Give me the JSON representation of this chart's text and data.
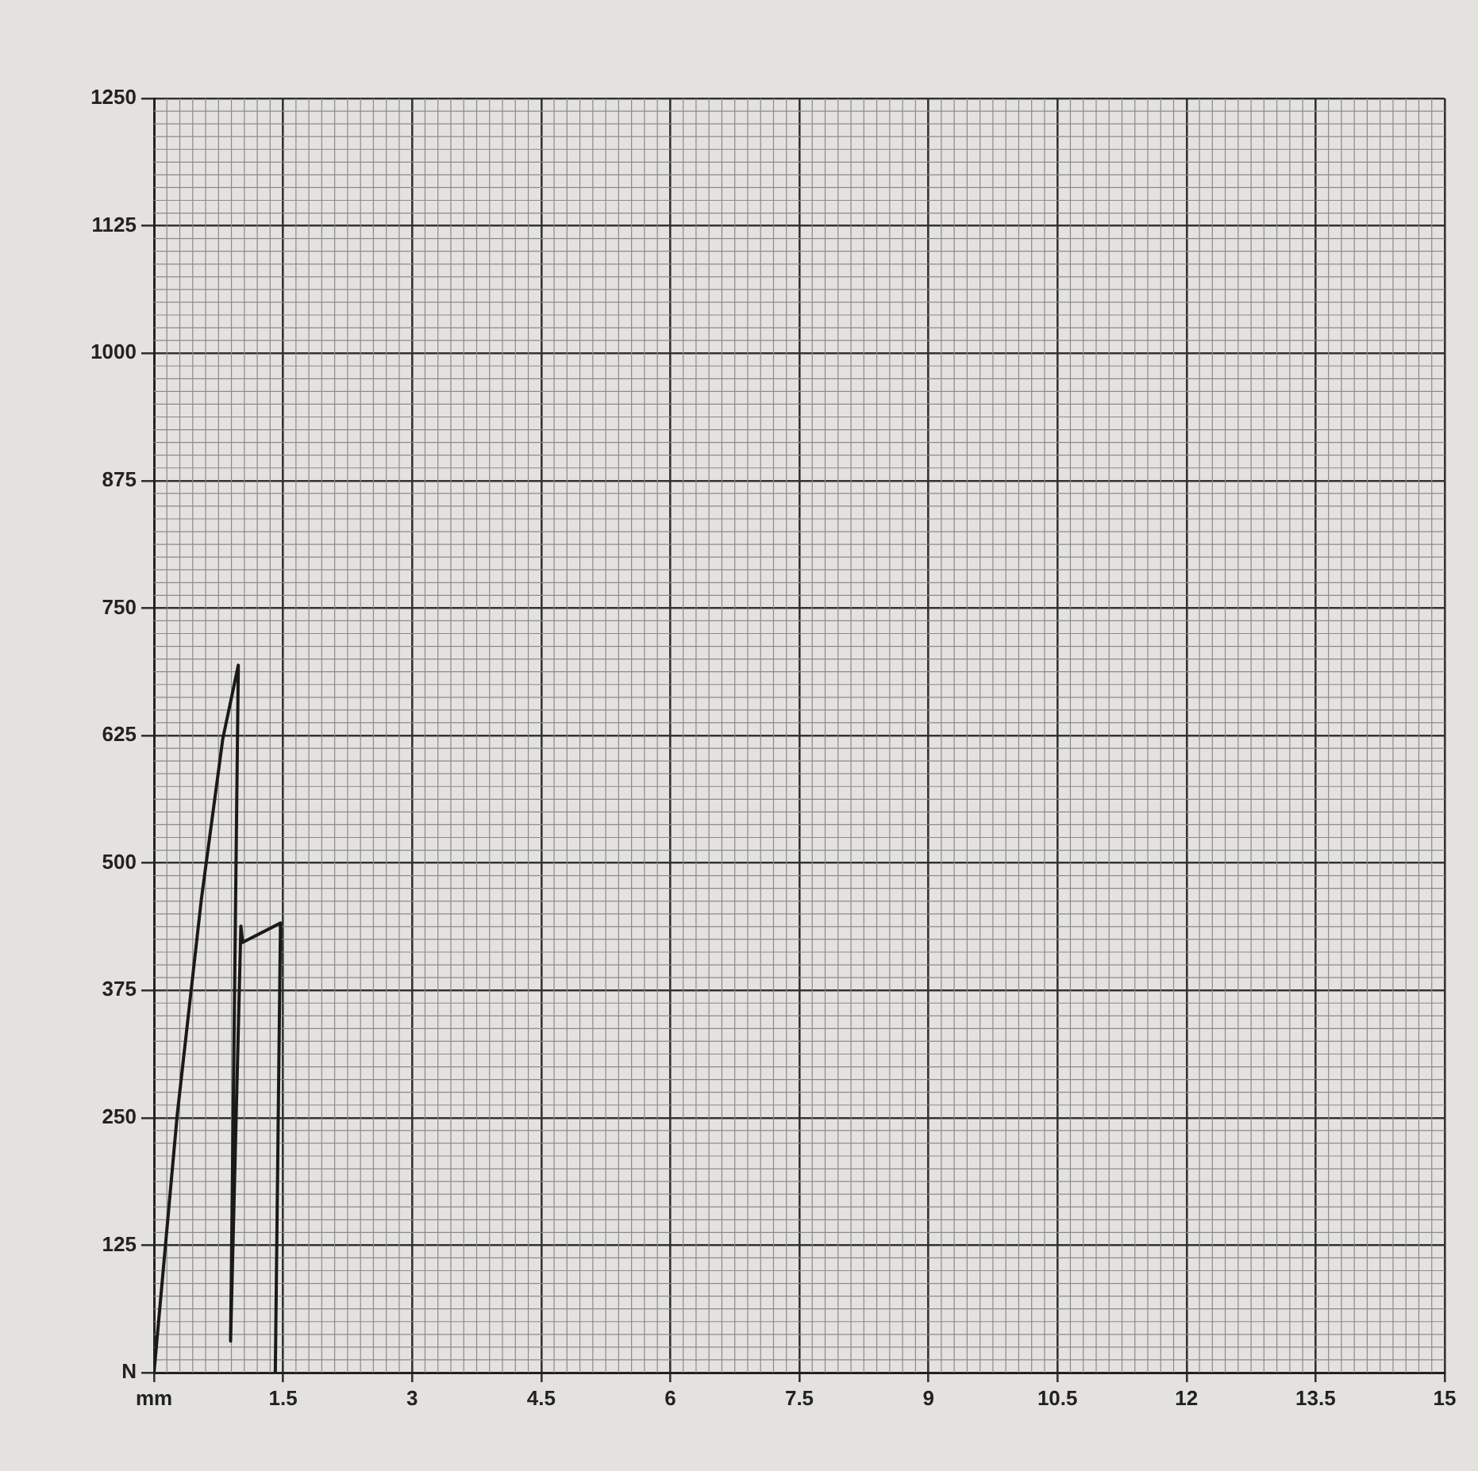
{
  "chart_data": {
    "type": "line",
    "x": [
      0,
      0.27,
      0.55,
      0.8,
      0.98,
      0.89,
      1.01,
      1.03,
      1.47,
      1.41
    ],
    "series": [
      {
        "color": "#1a1a1a",
        "values": [
          0,
          253,
          464,
          622,
          694,
          31,
          438,
          422,
          441,
          0
        ]
      }
    ],
    "xlim": [
      0,
      15
    ],
    "xticks": [
      {
        "value": 0,
        "label": "mm"
      },
      1.5,
      3,
      4.5,
      6,
      7.5,
      9,
      10.5,
      12,
      13.5,
      15
    ],
    "ylim": [
      0,
      1250
    ],
    "yticks": [
      {
        "value": 0,
        "label": "N"
      },
      125,
      250,
      375,
      500,
      625,
      750,
      875,
      1000,
      1125,
      1250
    ],
    "grid": true,
    "legend": false,
    "marker": "none",
    "line_style": "solid"
  }
}
